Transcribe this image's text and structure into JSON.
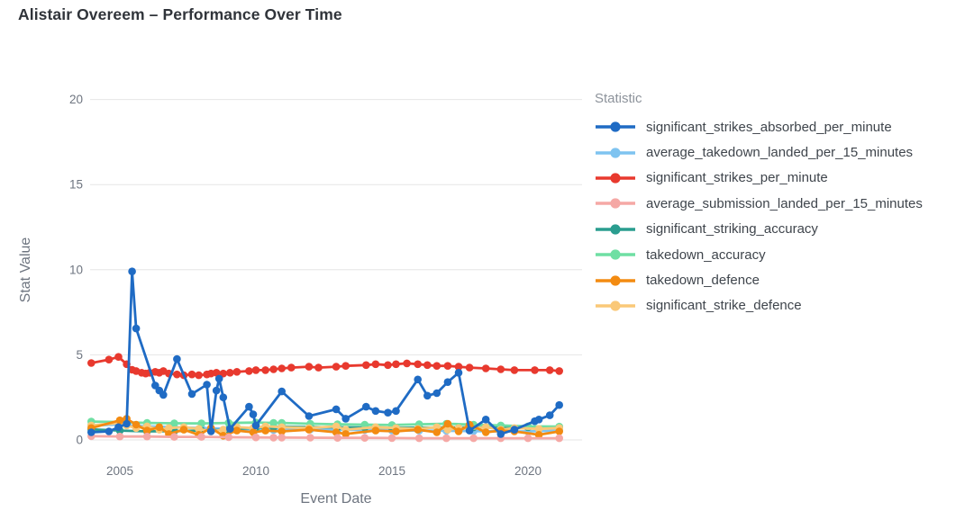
{
  "title": "Alistair Overeem – Performance Over Time",
  "legend": {
    "title": "Statistic"
  },
  "axes": {
    "xlabel": "Event Date",
    "ylabel": "Stat Value"
  },
  "chart_data": {
    "type": "line",
    "title": "Alistair Overeem – Performance Over Time",
    "xlabel": "Event Date",
    "ylabel": "Stat Value",
    "xlim": [
      2003.9,
      2021.9
    ],
    "ylim": [
      0,
      20
    ],
    "xticks": [
      2005,
      2010,
      2015,
      2020
    ],
    "yticks": [
      0,
      5,
      10,
      15,
      20
    ],
    "grid": "horizontal-only",
    "legend_position": "right",
    "legend_title": "Statistic",
    "note": "values estimated from pixel positions; x = event date (decimal year)",
    "series": [
      {
        "name": "significant_strikes_absorbed_per_minute",
        "color": "#1f6bc4",
        "x": [
          2003.95,
          2004.6,
          2004.95,
          2005.25,
          2005.45,
          2005.6,
          2006.3,
          2006.45,
          2006.6,
          2007.1,
          2007.65,
          2008.2,
          2008.35,
          2008.55,
          2008.65,
          2008.8,
          2009.05,
          2009.75,
          2009.9,
          2010.0,
          2010.95,
          2011.95,
          2012.95,
          2013.3,
          2014.05,
          2014.4,
          2014.85,
          2015.15,
          2015.95,
          2016.3,
          2016.65,
          2017.05,
          2017.45,
          2017.85,
          2018.45,
          2019.0,
          2019.5,
          2020.25,
          2020.4,
          2020.8,
          2021.15
        ],
        "y": [
          0.45,
          0.5,
          0.75,
          0.95,
          9.9,
          6.55,
          3.2,
          2.9,
          2.65,
          4.75,
          2.7,
          3.25,
          0.5,
          2.9,
          3.6,
          2.5,
          0.65,
          1.95,
          1.5,
          0.85,
          2.85,
          1.4,
          1.8,
          1.25,
          1.95,
          1.7,
          1.6,
          1.7,
          3.55,
          2.6,
          2.75,
          3.4,
          3.95,
          0.55,
          1.2,
          0.35,
          0.6,
          1.1,
          1.2,
          1.45,
          2.05
        ]
      },
      {
        "name": "average_takedown_landed_per_15_minutes",
        "color": "#7ec3f0",
        "x": [
          2003.95,
          2005.0,
          2006.0,
          2007.0,
          2008.0,
          2009.0,
          2010.0,
          2010.65,
          2010.95,
          2012.0,
          2013.0,
          2014.0,
          2015.0,
          2016.0,
          2017.0,
          2018.0,
          2019.0,
          2020.0,
          2021.15
        ],
        "y": [
          0.85,
          0.9,
          0.8,
          0.75,
          0.7,
          0.65,
          0.6,
          0.58,
          0.67,
          0.62,
          0.6,
          0.58,
          0.56,
          0.55,
          0.54,
          0.52,
          0.5,
          0.5,
          0.55
        ]
      },
      {
        "name": "significant_strikes_per_minute",
        "color": "#e8392e",
        "x": [
          2003.95,
          2004.6,
          2004.95,
          2005.25,
          2005.45,
          2005.6,
          2005.8,
          2005.95,
          2006.1,
          2006.3,
          2006.45,
          2006.6,
          2006.8,
          2007.1,
          2007.35,
          2007.65,
          2007.9,
          2008.2,
          2008.35,
          2008.55,
          2008.8,
          2009.05,
          2009.3,
          2009.75,
          2010.0,
          2010.35,
          2010.65,
          2010.95,
          2011.3,
          2011.95,
          2012.3,
          2012.95,
          2013.3,
          2014.05,
          2014.4,
          2014.85,
          2015.15,
          2015.55,
          2015.95,
          2016.3,
          2016.65,
          2017.05,
          2017.45,
          2017.85,
          2018.45,
          2019.0,
          2019.5,
          2020.25,
          2020.8,
          2021.15
        ],
        "y": [
          4.52,
          4.72,
          4.88,
          4.45,
          4.12,
          4.05,
          3.95,
          3.9,
          3.95,
          4.0,
          3.95,
          4.05,
          3.9,
          3.85,
          3.8,
          3.85,
          3.8,
          3.85,
          3.9,
          3.95,
          3.9,
          3.95,
          4.0,
          4.05,
          4.1,
          4.1,
          4.15,
          4.2,
          4.25,
          4.3,
          4.25,
          4.3,
          4.35,
          4.4,
          4.45,
          4.4,
          4.45,
          4.5,
          4.45,
          4.4,
          4.35,
          4.35,
          4.3,
          4.25,
          4.2,
          4.15,
          4.1,
          4.1,
          4.1,
          4.05
        ]
      },
      {
        "name": "average_submission_landed_per_15_minutes",
        "color": "#f5a8a5",
        "x": [
          2003.95,
          2005.0,
          2006.0,
          2007.0,
          2008.0,
          2009.0,
          2010.0,
          2010.65,
          2010.95,
          2012.0,
          2013.0,
          2014.0,
          2015.0,
          2016.0,
          2017.0,
          2018.0,
          2019.0,
          2020.0,
          2021.15
        ],
        "y": [
          0.22,
          0.2,
          0.2,
          0.18,
          0.18,
          0.16,
          0.15,
          0.14,
          0.14,
          0.13,
          0.12,
          0.12,
          0.11,
          0.1,
          0.1,
          0.1,
          0.1,
          0.1,
          0.1
        ]
      },
      {
        "name": "significant_striking_accuracy",
        "color": "#2a9d8f",
        "x": [
          2003.95,
          2005.0,
          2006.0,
          2007.0,
          2008.0,
          2009.0,
          2010.0,
          2010.65,
          2010.95,
          2012.0,
          2013.0,
          2014.0,
          2015.0,
          2016.0,
          2017.0,
          2018.0,
          2019.0,
          2020.0,
          2021.15
        ],
        "y": [
          0.62,
          0.55,
          0.5,
          0.52,
          0.55,
          0.6,
          0.72,
          0.75,
          0.78,
          0.75,
          0.74,
          0.73,
          0.72,
          0.72,
          0.73,
          0.74,
          0.74,
          0.75,
          0.75
        ]
      },
      {
        "name": "takedown_accuracy",
        "color": "#6fdfa3",
        "x": [
          2003.95,
          2005.0,
          2006.0,
          2007.0,
          2008.0,
          2009.0,
          2010.0,
          2010.65,
          2010.95,
          2012.0,
          2013.0,
          2014.0,
          2015.0,
          2016.0,
          2017.0,
          2018.0,
          2019.0,
          2020.0,
          2021.15
        ],
        "y": [
          1.08,
          1.05,
          1.0,
          0.98,
          0.97,
          1.0,
          1.02,
          1.0,
          1.0,
          0.95,
          0.92,
          0.9,
          0.88,
          0.92,
          0.95,
          0.9,
          0.85,
          0.8,
          0.78
        ]
      },
      {
        "name": "takedown_defence",
        "color": "#f38b11",
        "x": [
          2003.95,
          2005.0,
          2005.25,
          2005.6,
          2006.0,
          2006.45,
          2006.8,
          2007.35,
          2007.9,
          2008.35,
          2008.8,
          2009.3,
          2009.9,
          2010.35,
          2010.95,
          2011.95,
          2012.95,
          2013.3,
          2014.4,
          2015.15,
          2015.95,
          2016.65,
          2017.05,
          2017.45,
          2017.85,
          2018.45,
          2019.0,
          2019.5,
          2020.4,
          2021.15
        ],
        "y": [
          0.7,
          1.15,
          1.25,
          0.9,
          0.55,
          0.75,
          0.35,
          0.6,
          0.3,
          0.7,
          0.25,
          0.55,
          0.45,
          0.55,
          0.5,
          0.6,
          0.45,
          0.35,
          0.55,
          0.5,
          0.6,
          0.45,
          0.95,
          0.5,
          0.9,
          0.45,
          0.55,
          0.5,
          0.3,
          0.5
        ]
      },
      {
        "name": "significant_strike_defence",
        "color": "#fac878",
        "x": [
          2003.95,
          2005.0,
          2005.25,
          2005.6,
          2006.0,
          2006.45,
          2006.8,
          2007.35,
          2007.9,
          2008.35,
          2008.8,
          2009.3,
          2009.9,
          2010.35,
          2010.95,
          2011.95,
          2012.95,
          2013.3,
          2014.4,
          2015.15,
          2015.95,
          2016.65,
          2017.05,
          2017.45,
          2017.85,
          2018.45,
          2019.0,
          2019.5,
          2020.4,
          2021.15
        ],
        "y": [
          0.85,
          1.0,
          0.85,
          0.7,
          0.8,
          0.6,
          0.7,
          0.75,
          0.65,
          0.5,
          0.6,
          0.75,
          0.7,
          0.8,
          0.75,
          0.7,
          0.8,
          0.6,
          0.75,
          0.7,
          0.65,
          0.75,
          0.6,
          0.7,
          0.65,
          0.75,
          0.6,
          0.7,
          0.65,
          0.7
        ]
      }
    ],
    "styles": {
      "grid_color": "#e6e6e6",
      "tick_label_color": "#6e7580",
      "axis_title_color": "#6e7580",
      "legend_title_color": "#8d939b",
      "legend_label_color": "#3f454c",
      "title_color": "#30343a",
      "background": "#ffffff"
    }
  }
}
